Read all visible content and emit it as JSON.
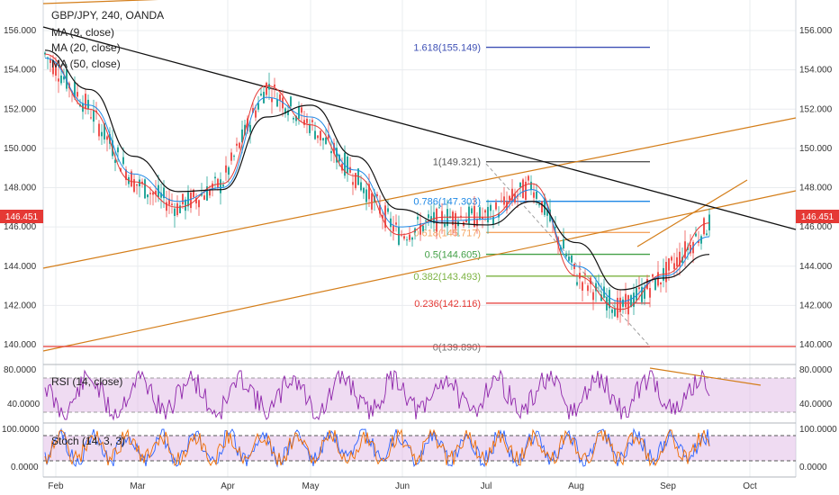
{
  "header": {
    "symbol": "GBP/JPY, 240, OANDA",
    "indicators": [
      "MA (9, close)",
      "MA (20, close)",
      "MA (50, close)"
    ]
  },
  "price_badge": {
    "left": "146.451",
    "right": "146.451",
    "color": "#e53935"
  },
  "subpanels": {
    "rsi": {
      "label": "RSI (14, close)",
      "ticks": [
        "80.0000",
        "40.0000"
      ],
      "color": "#8e24aa",
      "band": "#e1bee7"
    },
    "stoch": {
      "label": "Stoch (14, 3, 3)",
      "ticks": [
        "100.0000",
        "0.0000"
      ],
      "color": "#2962ff",
      "band": "#e1bee7"
    }
  },
  "colors": {
    "grid": "#e9ecef",
    "main_trend": "#111111",
    "channel": "#d47e1a",
    "support": "#e53935",
    "candle_up": "#26a69a",
    "candle_down": "#ef5350"
  },
  "chart_data": {
    "type": "line",
    "title": "GBP/JPY, 240, OANDA",
    "x_ticks": [
      "Feb",
      "Mar",
      "Apr",
      "May",
      "Jun",
      "Jul",
      "Aug",
      "Sep",
      "Oct"
    ],
    "y_ticks": [
      "156.000",
      "154.000",
      "152.000",
      "150.000",
      "148.000",
      "146.000",
      "144.000",
      "142.000",
      "140.000"
    ],
    "ylim": [
      139.5,
      157.5
    ],
    "series": [
      {
        "name": "MA (9, close)",
        "x": [
          "Feb",
          "Feb",
          "Mar",
          "Mar",
          "Apr",
          "Apr",
          "May",
          "May",
          "Jun",
          "Jun",
          "Jul",
          "Jul",
          "Aug",
          "Aug",
          "Sep",
          "Sep"
        ],
        "values": [
          154.8,
          152.0,
          148.3,
          147.0,
          148.2,
          153.2,
          151.2,
          148.6,
          145.6,
          146.5,
          146.5,
          148.2,
          143.5,
          141.8,
          143.6,
          146.2
        ]
      },
      {
        "name": "MA (20, close)",
        "x": [
          "Feb",
          "Feb",
          "Mar",
          "Mar",
          "Apr",
          "Apr",
          "May",
          "May",
          "Jun",
          "Jun",
          "Jul",
          "Jul",
          "Aug",
          "Aug",
          "Sep",
          "Sep"
        ],
        "values": [
          154.6,
          152.2,
          148.7,
          147.3,
          148.0,
          152.6,
          151.6,
          148.9,
          146.0,
          146.3,
          146.4,
          147.9,
          144.0,
          142.2,
          143.5,
          145.5
        ]
      },
      {
        "name": "MA (50, close)",
        "x": [
          "Feb",
          "Feb",
          "Mar",
          "Mar",
          "Apr",
          "Apr",
          "May",
          "May",
          "Jun",
          "Jun",
          "Jul",
          "Jul",
          "Aug",
          "Aug",
          "Sep",
          "Sep"
        ],
        "values": [
          155.0,
          153.0,
          149.6,
          147.8,
          147.9,
          151.6,
          152.2,
          149.6,
          146.9,
          146.2,
          146.1,
          147.3,
          145.2,
          142.8,
          143.4,
          144.6
        ]
      }
    ],
    "fib_levels": [
      {
        "label": "1.618(155.149)",
        "value": 155.149,
        "color": "#3f51b5"
      },
      {
        "label": "1(149.321)",
        "value": 149.321,
        "color": "#555555"
      },
      {
        "label": "0.786(147.303)",
        "value": 147.303,
        "color": "#1e88e5"
      },
      {
        "label": "0.618(145.717)",
        "value": 145.717,
        "color": "#f4a460"
      },
      {
        "label": "0.5(144.605)",
        "value": 144.605,
        "color": "#43a047"
      },
      {
        "label": "0.382(143.493)",
        "value": 143.493,
        "color": "#7cb342"
      },
      {
        "label": "0.236(142.116)",
        "value": 142.116,
        "color": "#e53935"
      },
      {
        "label": "0(139.890)",
        "value": 139.89,
        "color": "#757575"
      }
    ],
    "grid": true
  }
}
